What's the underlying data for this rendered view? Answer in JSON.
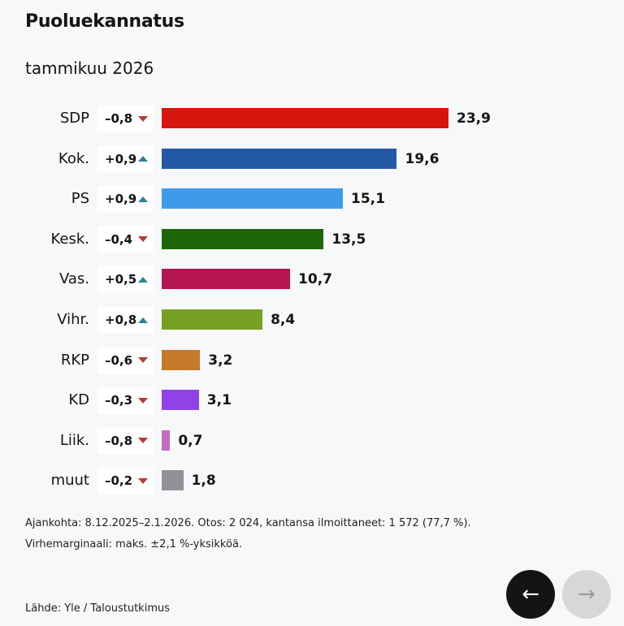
{
  "chart_data": {
    "type": "bar",
    "orientation": "horizontal",
    "title": "Puoluekannatus",
    "subtitle": "tammikuu 2026",
    "xlabel": "",
    "ylabel": "",
    "unit": "%",
    "xlim": [
      0,
      23.9
    ],
    "categories": [
      "SDP",
      "Kok.",
      "PS",
      "Kesk.",
      "Vas.",
      "Vihr.",
      "RKP",
      "KD",
      "Liik.",
      "muut"
    ],
    "values": [
      23.9,
      19.6,
      15.1,
      13.5,
      10.7,
      8.4,
      3.2,
      3.1,
      0.7,
      1.8
    ],
    "value_labels": [
      "23,9",
      "19,6",
      "15,1",
      "13,5",
      "10,7",
      "8,4",
      "3,2",
      "3,1",
      "0,7",
      "1,8"
    ],
    "changes": [
      -0.8,
      0.9,
      0.9,
      -0.4,
      0.5,
      0.8,
      -0.6,
      -0.3,
      -0.8,
      -0.2
    ],
    "change_labels": [
      "–0,8",
      "+0,9",
      "+0,9",
      "–0,4",
      "+0,5",
      "+0,8",
      "–0,6",
      "–0,3",
      "–0,8",
      "–0,2"
    ],
    "change_directions": [
      "down",
      "up",
      "up",
      "down",
      "up",
      "up",
      "down",
      "down",
      "down",
      "down"
    ],
    "colors": [
      "#d7150f",
      "#2358a6",
      "#3f9bea",
      "#1e6508",
      "#b4154f",
      "#76a021",
      "#c57a2b",
      "#9142e6",
      "#c56bbf",
      "#909194"
    ],
    "grid": false,
    "legend": "none"
  },
  "notes": {
    "line1": "Ajankohta: 8.12.2025–2.1.2026. Otos: 2 024, kantansa ilmoittaneet: 1 572 (77,7 %).",
    "line2": "Virhemarginaali: maks. ±2,1 %-yksikköä.",
    "source": "Lähde: Yle / Taloustutkimus"
  },
  "navigation": {
    "prev_icon": "←",
    "next_icon": "→"
  },
  "colors": {
    "up": "#2f8196",
    "down": "#b83b36"
  }
}
